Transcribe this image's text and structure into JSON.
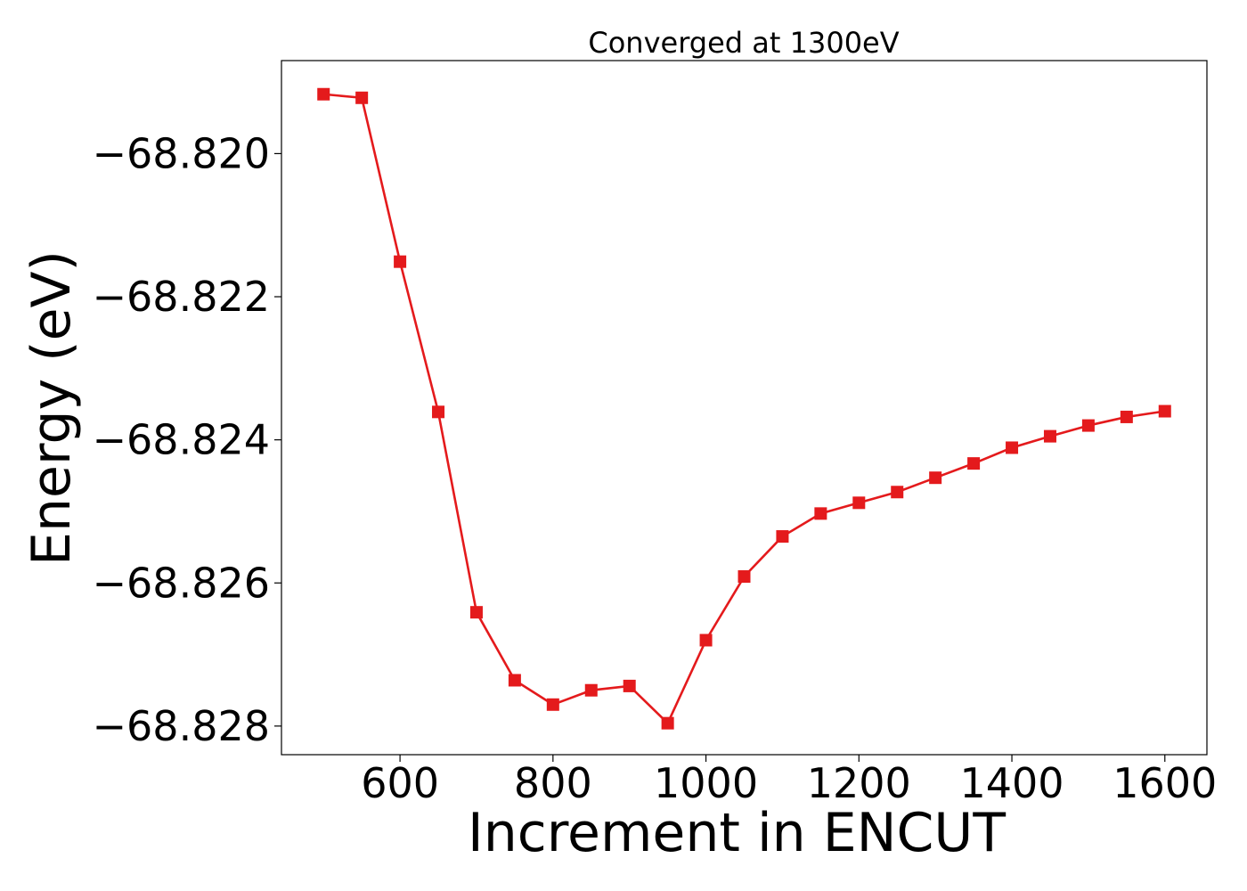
{
  "chart_data": {
    "type": "line",
    "title": "Converged at 1300eV",
    "xlabel": "Increment in ENCUT",
    "ylabel": "Energy (eV)",
    "xlim": [
      445,
      1655
    ],
    "ylim": [
      -68.8284,
      -68.8187
    ],
    "xticks": [
      600,
      800,
      1000,
      1200,
      1400,
      1600
    ],
    "xtick_labels": [
      "600",
      "800",
      "1000",
      "1200",
      "1400",
      "1600"
    ],
    "yticks": [
      -68.82,
      -68.822,
      -68.824,
      -68.826,
      -68.828
    ],
    "ytick_labels": [
      "−68.820",
      "−68.822",
      "−68.824",
      "−68.826",
      "−68.828"
    ],
    "grid": false,
    "series": [
      {
        "color": "#e41a1c",
        "marker": "square",
        "x": [
          500,
          550,
          600,
          650,
          700,
          750,
          800,
          850,
          900,
          950,
          1000,
          1050,
          1100,
          1150,
          1200,
          1250,
          1300,
          1350,
          1400,
          1450,
          1500,
          1550,
          1600
        ],
        "y": [
          -68.81917,
          -68.81922,
          -68.82151,
          -68.82361,
          -68.82641,
          -68.82736,
          -68.8277,
          -68.8275,
          -68.82744,
          -68.82796,
          -68.8268,
          -68.82591,
          -68.82535,
          -68.82503,
          -68.82488,
          -68.82473,
          -68.82453,
          -68.82433,
          -68.82411,
          -68.82395,
          -68.8238,
          -68.82368,
          -68.8236
        ]
      }
    ]
  }
}
